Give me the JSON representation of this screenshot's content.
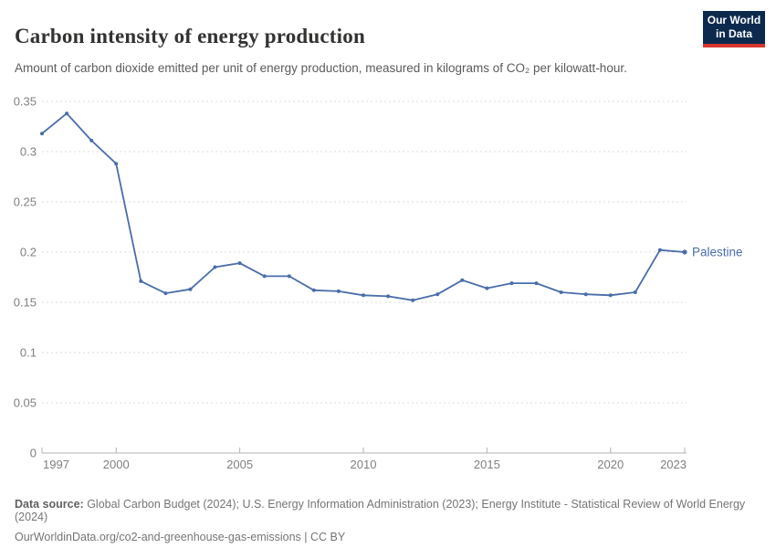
{
  "header": {
    "title": "Carbon intensity of energy production",
    "subtitle": "Amount of carbon dioxide emitted per unit of energy production, measured in kilograms of CO₂ per kilowatt-hour.",
    "logo": {
      "line1": "Our World",
      "line2": "in Data"
    }
  },
  "chart_data": {
    "type": "line",
    "title": "Carbon intensity of energy production",
    "xlabel": "",
    "ylabel": "",
    "xlim": [
      1997,
      2023
    ],
    "ylim": [
      0,
      0.35
    ],
    "x_ticks": [
      1997,
      2000,
      2005,
      2010,
      2015,
      2020,
      2023
    ],
    "y_ticks": [
      0,
      0.05,
      0.1,
      0.15,
      0.2,
      0.25,
      0.3,
      0.35
    ],
    "grid": "horizontal-dashed",
    "legend_position": "end-of-line-label",
    "x": [
      1997,
      1998,
      1999,
      2000,
      2001,
      2002,
      2003,
      2004,
      2005,
      2006,
      2007,
      2008,
      2009,
      2010,
      2011,
      2012,
      2013,
      2014,
      2015,
      2016,
      2017,
      2018,
      2019,
      2020,
      2021,
      2022,
      2023
    ],
    "series": [
      {
        "name": "Palestine",
        "color": "#4a6daa",
        "values": [
          0.318,
          0.338,
          0.311,
          0.288,
          0.171,
          0.159,
          0.163,
          0.185,
          0.189,
          0.176,
          0.176,
          0.162,
          0.161,
          0.157,
          0.156,
          0.152,
          0.158,
          0.172,
          0.164,
          0.169,
          0.169,
          0.16,
          0.158,
          0.157,
          0.16,
          0.202,
          0.2
        ]
      }
    ]
  },
  "footer": {
    "source_label": "Data source:",
    "source_text": " Global Carbon Budget (2024); U.S. Energy Information Administration (2023); Energy Institute - Statistical Review of World Energy (2024)",
    "link_text": "OurWorldinData.org/co2-and-greenhouse-gas-emissions | CC BY"
  },
  "colors": {
    "grid": "#dcdcdc",
    "axis": "#b3b3b3",
    "tick_label": "#808080",
    "line": "#4a6daa",
    "logo_bg": "#0d2a4e",
    "logo_bar": "#d8352f"
  }
}
